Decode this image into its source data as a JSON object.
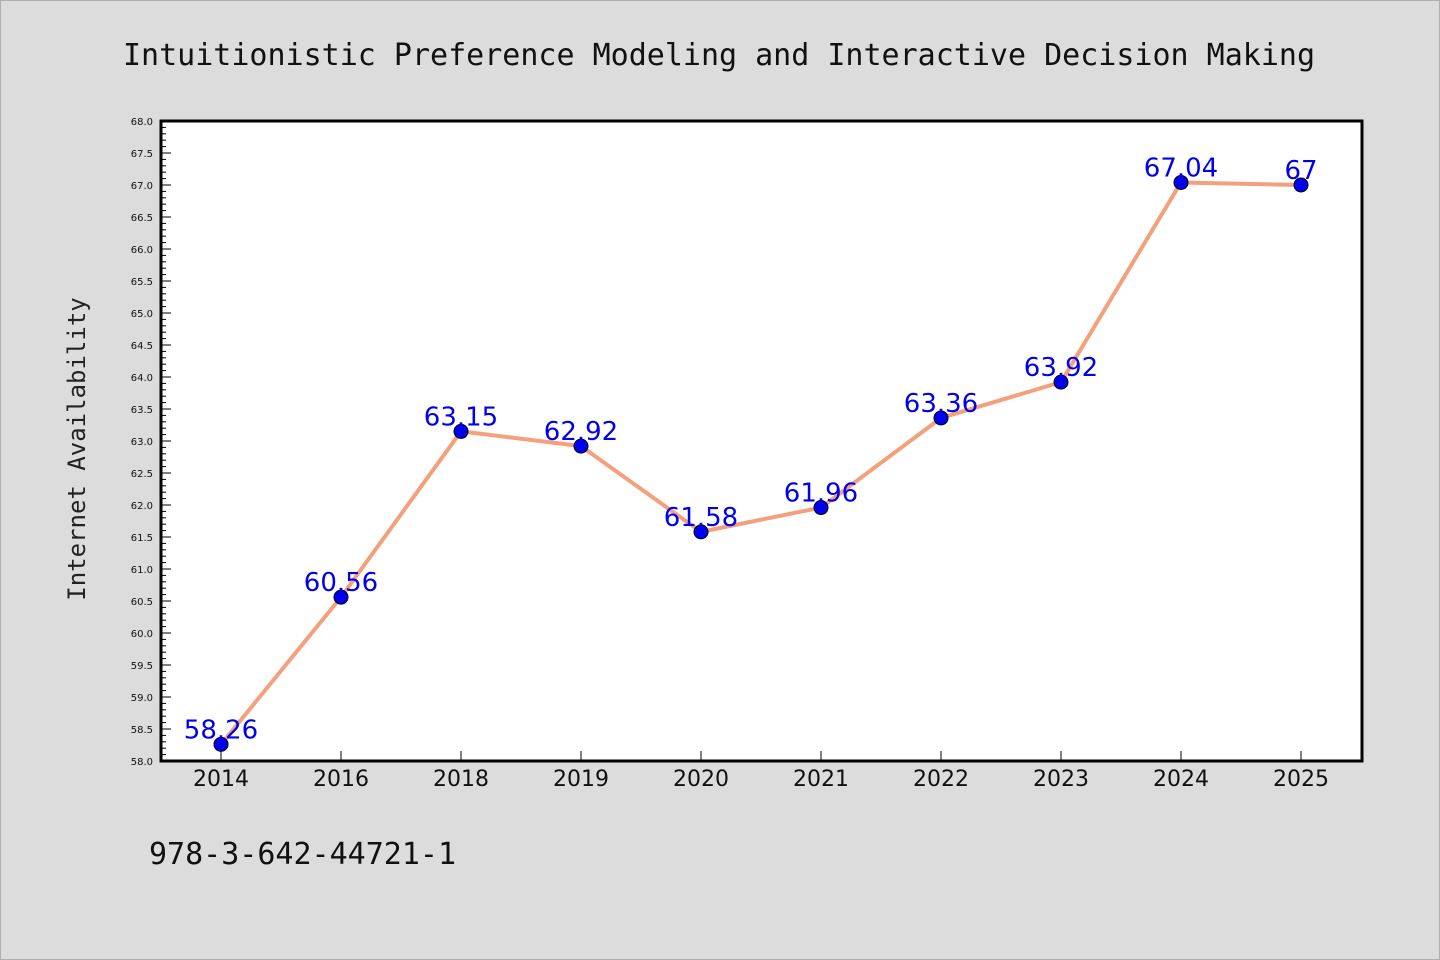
{
  "chart_data": {
    "type": "line",
    "title": "Intuitionistic Preference Modeling and Interactive Decision Making",
    "xlabel": "",
    "ylabel": "Internet Availability",
    "categories": [
      "2014",
      "2016",
      "2018",
      "2019",
      "2020",
      "2021",
      "2022",
      "2023",
      "2024",
      "2025"
    ],
    "series": [
      {
        "values": [
          58.26,
          60.56,
          63.15,
          62.92,
          61.58,
          61.96,
          63.36,
          63.92,
          67.04,
          67
        ]
      }
    ],
    "data_labels": [
      "58.26",
      "60.56",
      "63.15",
      "62.92",
      "61.58",
      "61.96",
      "63.36",
      "63.92",
      "67.04",
      "67"
    ],
    "ylim": [
      58.0,
      68.0
    ],
    "yticks": [
      "58.0",
      "58.5",
      "59.0",
      "59.5",
      "60.0",
      "60.5",
      "61.0",
      "61.5",
      "62.0",
      "62.5",
      "63.0",
      "63.5",
      "64.0",
      "64.5",
      "65.0",
      "65.5",
      "66.0",
      "66.5",
      "67.0",
      "67.5",
      "68.0"
    ],
    "grid": false,
    "legend": "none",
    "line_color": "#f4a07c",
    "marker_color": "#0000ee",
    "label_color": "#0000ee"
  },
  "footer": {
    "isbn": "978-3-642-44721-1"
  }
}
